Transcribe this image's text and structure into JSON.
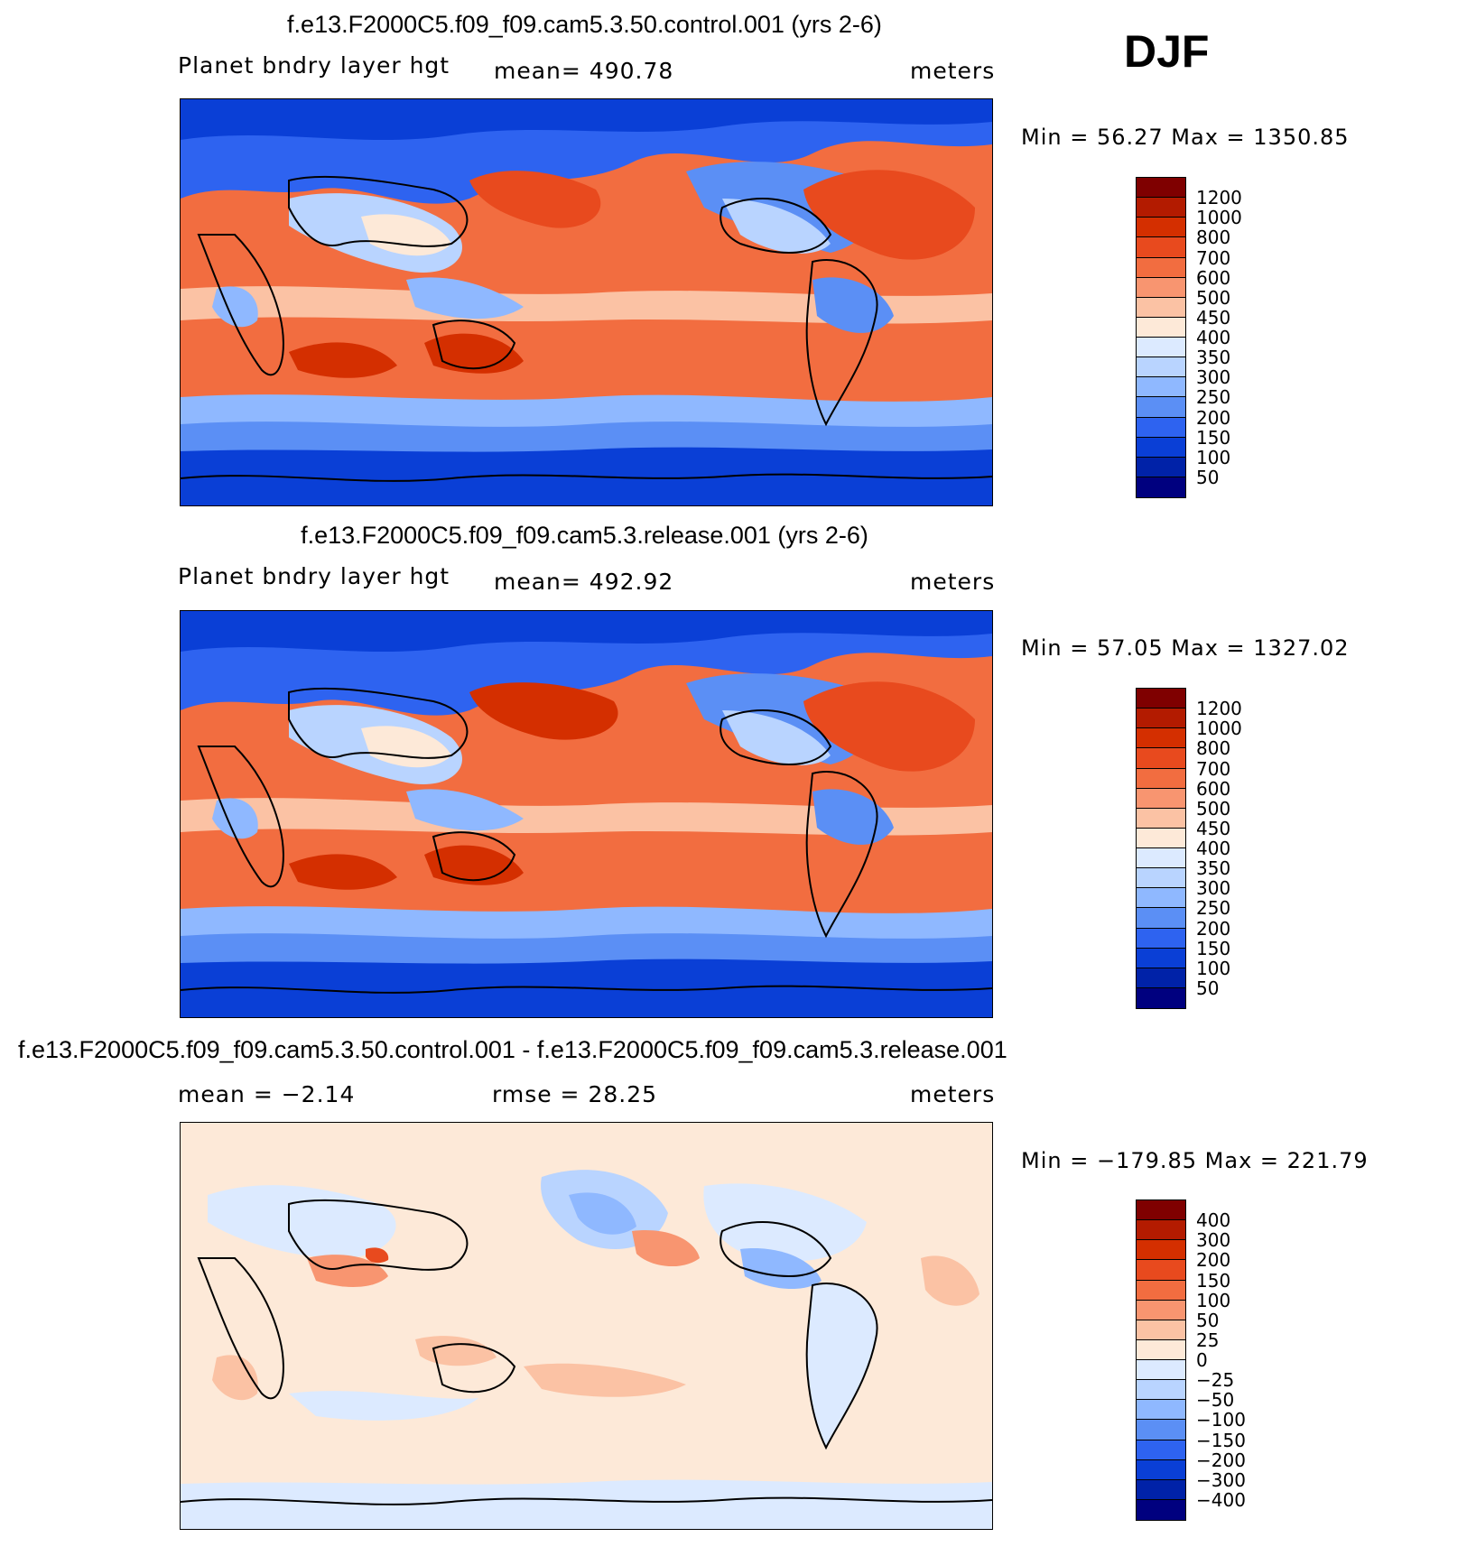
{
  "season": "DJF",
  "panels": [
    {
      "title": "f.e13.F2000C5.f09_f09.cam5.3.50.control.001 (yrs 2-6)",
      "left_label": "Planet bndry layer hgt",
      "center_label": "mean= 490.78",
      "units": "meters",
      "minmax": "Min =   56.27 Max = 1350.85",
      "levels": [
        "1200",
        "1000",
        "800",
        "700",
        "600",
        "500",
        "450",
        "400",
        "350",
        "300",
        "250",
        "200",
        "150",
        "100",
        "50"
      ],
      "colors": [
        "#7f0000",
        "#b31b00",
        "#d42f00",
        "#e84a1e",
        "#f26d40",
        "#f89570",
        "#fbc2a4",
        "#fde9d8",
        "#dceaff",
        "#b9d4ff",
        "#8fb8ff",
        "#5b8ff5",
        "#2e63f0",
        "#0a3fd6",
        "#0022a8",
        "#00007f"
      ]
    },
    {
      "title": "f.e13.F2000C5.f09_f09.cam5.3.release.001 (yrs 2-6)",
      "left_label": "Planet bndry layer hgt",
      "center_label": "mean= 492.92",
      "units": "meters",
      "minmax": "Min =   57.05 Max = 1327.02",
      "levels": [
        "1200",
        "1000",
        "800",
        "700",
        "600",
        "500",
        "450",
        "400",
        "350",
        "300",
        "250",
        "200",
        "150",
        "100",
        "50"
      ],
      "colors": [
        "#7f0000",
        "#b31b00",
        "#d42f00",
        "#e84a1e",
        "#f26d40",
        "#f89570",
        "#fbc2a4",
        "#fde9d8",
        "#dceaff",
        "#b9d4ff",
        "#8fb8ff",
        "#5b8ff5",
        "#2e63f0",
        "#0a3fd6",
        "#0022a8",
        "#00007f"
      ]
    },
    {
      "title": "f.e13.F2000C5.f09_f09.cam5.3.50.control.001 - f.e13.F2000C5.f09_f09.cam5.3.release.001",
      "left_label": "mean =   −2.14",
      "center_label": "rmse =   28.25",
      "units": "meters",
      "minmax": "Min = −179.85 Max =  221.79",
      "levels": [
        "400",
        "300",
        "200",
        "150",
        "100",
        "50",
        "25",
        "0",
        "−25",
        "−50",
        "−100",
        "−150",
        "−200",
        "−300",
        "−400"
      ],
      "colors": [
        "#7f0000",
        "#b31b00",
        "#d42f00",
        "#e84a1e",
        "#f26d40",
        "#f89570",
        "#fbc2a4",
        "#fde9d8",
        "#dceaff",
        "#b9d4ff",
        "#8fb8ff",
        "#5b8ff5",
        "#2e63f0",
        "#0a3fd6",
        "#0022a8",
        "#00007f"
      ]
    }
  ]
}
